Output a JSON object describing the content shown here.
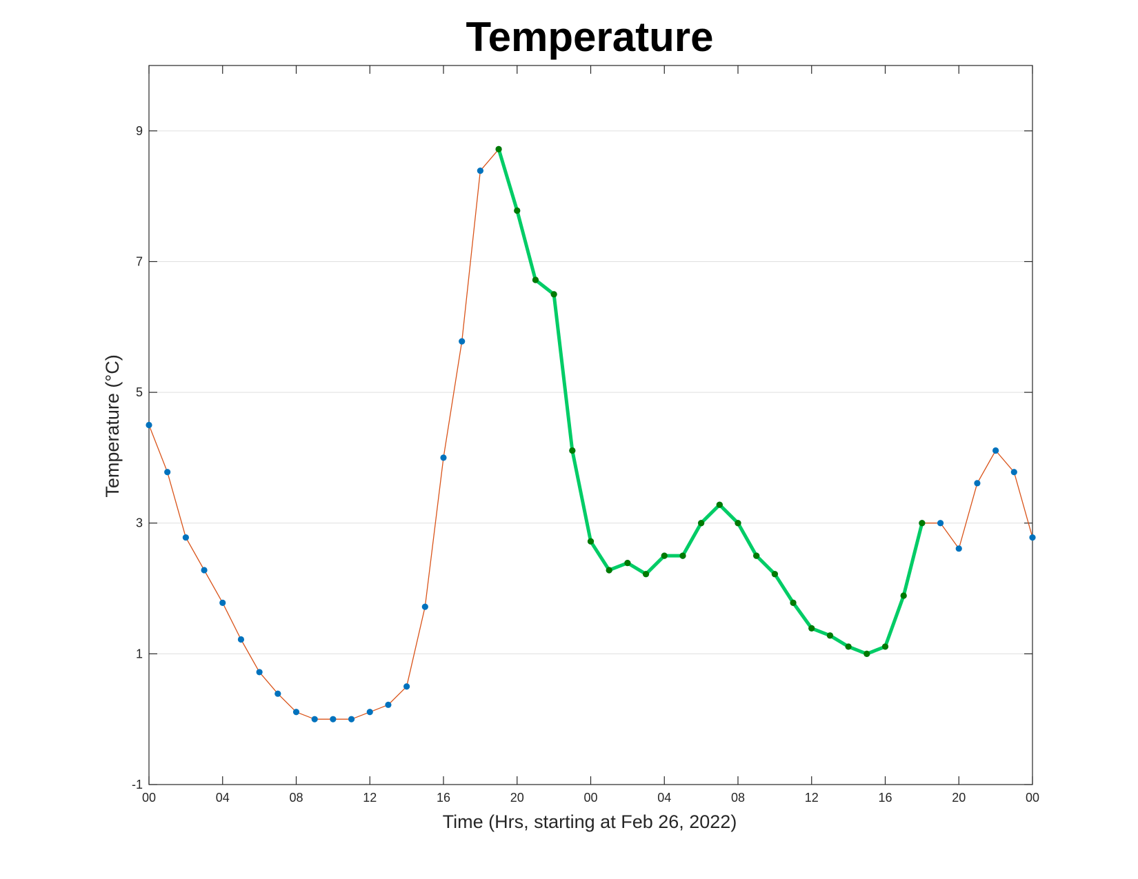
{
  "chart_data": {
    "type": "line",
    "title": "Temperature",
    "xlabel": "Time (Hrs, starting at Feb 26, 2022)",
    "ylabel": "Temperature (°C)",
    "xlim": [
      0,
      48
    ],
    "ylim": [
      -1,
      10
    ],
    "x_tick_values": [
      0,
      4,
      8,
      12,
      16,
      20,
      24,
      28,
      32,
      36,
      40,
      44,
      48
    ],
    "x_tick_labels": [
      "00",
      "04",
      "08",
      "12",
      "16",
      "20",
      "00",
      "04",
      "08",
      "12",
      "16",
      "20",
      "00"
    ],
    "y_tick_values": [
      -1,
      1,
      3,
      5,
      7,
      9
    ],
    "y_tick_labels": [
      "-1",
      "1",
      "3",
      "5",
      "7",
      "9"
    ],
    "grid": "horizontal",
    "series": [
      {
        "color": "#d95319",
        "marker_color": "#0072bd",
        "x": [
          0,
          1,
          2,
          3,
          4,
          5,
          6,
          7,
          8,
          9,
          10,
          11,
          12,
          13,
          14,
          15,
          16,
          17,
          18,
          19,
          20,
          21,
          22,
          23,
          24,
          25,
          26,
          27,
          28,
          29,
          30,
          31,
          32,
          33,
          34,
          35,
          36,
          37,
          38,
          39,
          40,
          41,
          42,
          43,
          44,
          45,
          46,
          47,
          48
        ],
        "y": [
          4.5,
          3.78,
          2.78,
          2.28,
          1.78,
          1.22,
          0.72,
          0.39,
          0.11,
          0,
          0,
          0,
          0.11,
          0.22,
          0.5,
          1.72,
          4.0,
          5.78,
          8.39,
          8.72,
          7.78,
          6.72,
          6.5,
          4.11,
          2.72,
          2.28,
          2.39,
          2.22,
          2.5,
          2.5,
          3.0,
          3.28,
          3.0,
          2.5,
          2.22,
          1.78,
          1.39,
          1.28,
          1.11,
          1.0,
          1.11,
          1.89,
          3.0,
          3.0,
          2.61,
          3.61,
          4.11,
          3.78,
          2.78
        ]
      },
      {
        "color": "#00cc66",
        "marker_color": "#007a00",
        "x": [
          19,
          20,
          21,
          22,
          23,
          24,
          25,
          26,
          27,
          28,
          29,
          30,
          31,
          32,
          33,
          34,
          35,
          36,
          37,
          38,
          39,
          40,
          41,
          42
        ],
        "y": [
          8.72,
          7.78,
          6.72,
          6.5,
          4.11,
          2.72,
          2.28,
          2.39,
          2.22,
          2.5,
          2.5,
          3.0,
          3.28,
          3.0,
          2.5,
          2.22,
          1.78,
          1.39,
          1.28,
          1.11,
          1.0,
          1.11,
          1.89,
          3.0
        ]
      }
    ]
  }
}
